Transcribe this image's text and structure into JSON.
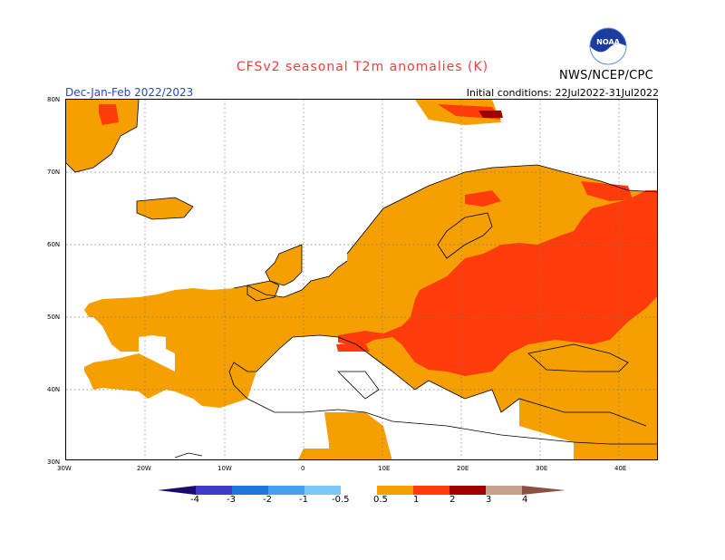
{
  "header": {
    "title": "CFSv2  seasonal  T2m  anomalies  (K)",
    "season": "Dec-Jan-Feb 2022/2023",
    "initial_conditions": "Initial conditions: 22Jul2022-31Jul2022",
    "agency": "NWS/NCEP/CPC",
    "logo_text": "NOAA"
  },
  "map": {
    "lat_labels": [
      "80N",
      "70N",
      "60N",
      "50N",
      "40N",
      "30N"
    ],
    "lon_labels": [
      "30W",
      "20W",
      "10W",
      "0",
      "10E",
      "20E",
      "30E",
      "40E"
    ]
  },
  "colorbar": {
    "labels": [
      "-4",
      "-3",
      "-2",
      "-1",
      "-0.5",
      "0.5",
      "1",
      "2",
      "3",
      "4"
    ],
    "colors": [
      "#1e0a6e",
      "#3c3cc8",
      "#1e78dc",
      "#46a0f0",
      "#78c8fa",
      "#ffffff",
      "#f5a000",
      "#ff3c0a",
      "#a00000",
      "#c8a090",
      "#8c5040"
    ]
  },
  "chart_data": {
    "type": "heatmap",
    "title": "CFSv2  seasonal  T2m  anomalies  (K)",
    "subtitle": "Dec-Jan-Feb 2022/2023",
    "legend_bins": [
      "< -4",
      "-4 to -3",
      "-3 to -2",
      "-2 to -1",
      "-1 to -0.5",
      "-0.5 to 0.5",
      "0.5 to 1",
      "1 to 2",
      "2 to 3",
      "3 to 4",
      "> 4"
    ],
    "xlim": [
      -30,
      45
    ],
    "ylim": [
      30,
      80
    ],
    "colors": {
      "0.5-1": "#f5a000",
      "1-2": "#ff3c0a",
      "2-3": "#a00000",
      "none": "#ffffff"
    }
  }
}
